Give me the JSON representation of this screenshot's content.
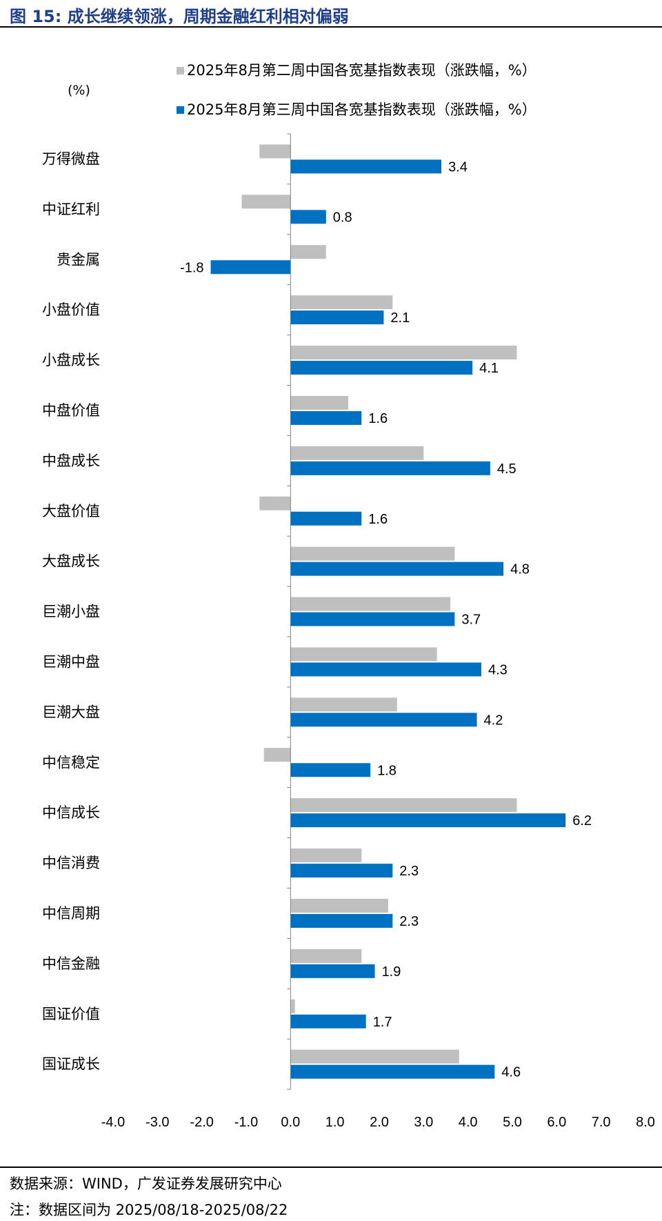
{
  "figure": {
    "title": "图 15:  成长继续领涨，周期金融红利相对偏弱",
    "source": "数据来源：WIND，广发证券发展研究中心",
    "note": "注：数据区间为 2025/08/18-2025/08/22"
  },
  "chart_data": {
    "type": "bar",
    "orientation": "horizontal",
    "unit_label": "(%)",
    "categories": [
      "万得微盘",
      "中证红利",
      "贵金属",
      "小盘价值",
      "小盘成长",
      "中盘价值",
      "中盘成长",
      "大盘价值",
      "大盘成长",
      "巨潮小盘",
      "巨潮中盘",
      "巨潮大盘",
      "中信稳定",
      "中信成长",
      "中信消费",
      "中信周期",
      "中信金融",
      "国证价值",
      "国证成长"
    ],
    "series": [
      {
        "name": "2025年8月第二周中国各宽基指数表现（涨跌幅，%）",
        "color": "#bfbfbf",
        "values": [
          -0.7,
          -1.1,
          0.8,
          2.3,
          5.1,
          1.3,
          3.0,
          -0.7,
          3.7,
          3.6,
          3.3,
          2.4,
          -0.6,
          5.1,
          1.6,
          2.2,
          1.6,
          0.1,
          3.8
        ],
        "show_labels": false
      },
      {
        "name": "2025年8月第三周中国各宽基指数表现（涨跌幅，%）",
        "color": "#0070c0",
        "values": [
          3.4,
          0.8,
          -1.8,
          2.1,
          4.1,
          1.6,
          4.5,
          1.6,
          4.8,
          3.7,
          4.3,
          4.2,
          1.8,
          6.2,
          2.3,
          2.3,
          1.9,
          1.7,
          4.6
        ],
        "show_labels": true
      }
    ],
    "xlim": [
      -4.0,
      8.0
    ],
    "xticks": [
      "-4.0",
      "-3.0",
      "-2.0",
      "-1.0",
      "0.0",
      "1.0",
      "2.0",
      "3.0",
      "4.0",
      "5.0",
      "6.0",
      "7.0",
      "8.0"
    ],
    "legend_position": "top",
    "grid": false
  }
}
